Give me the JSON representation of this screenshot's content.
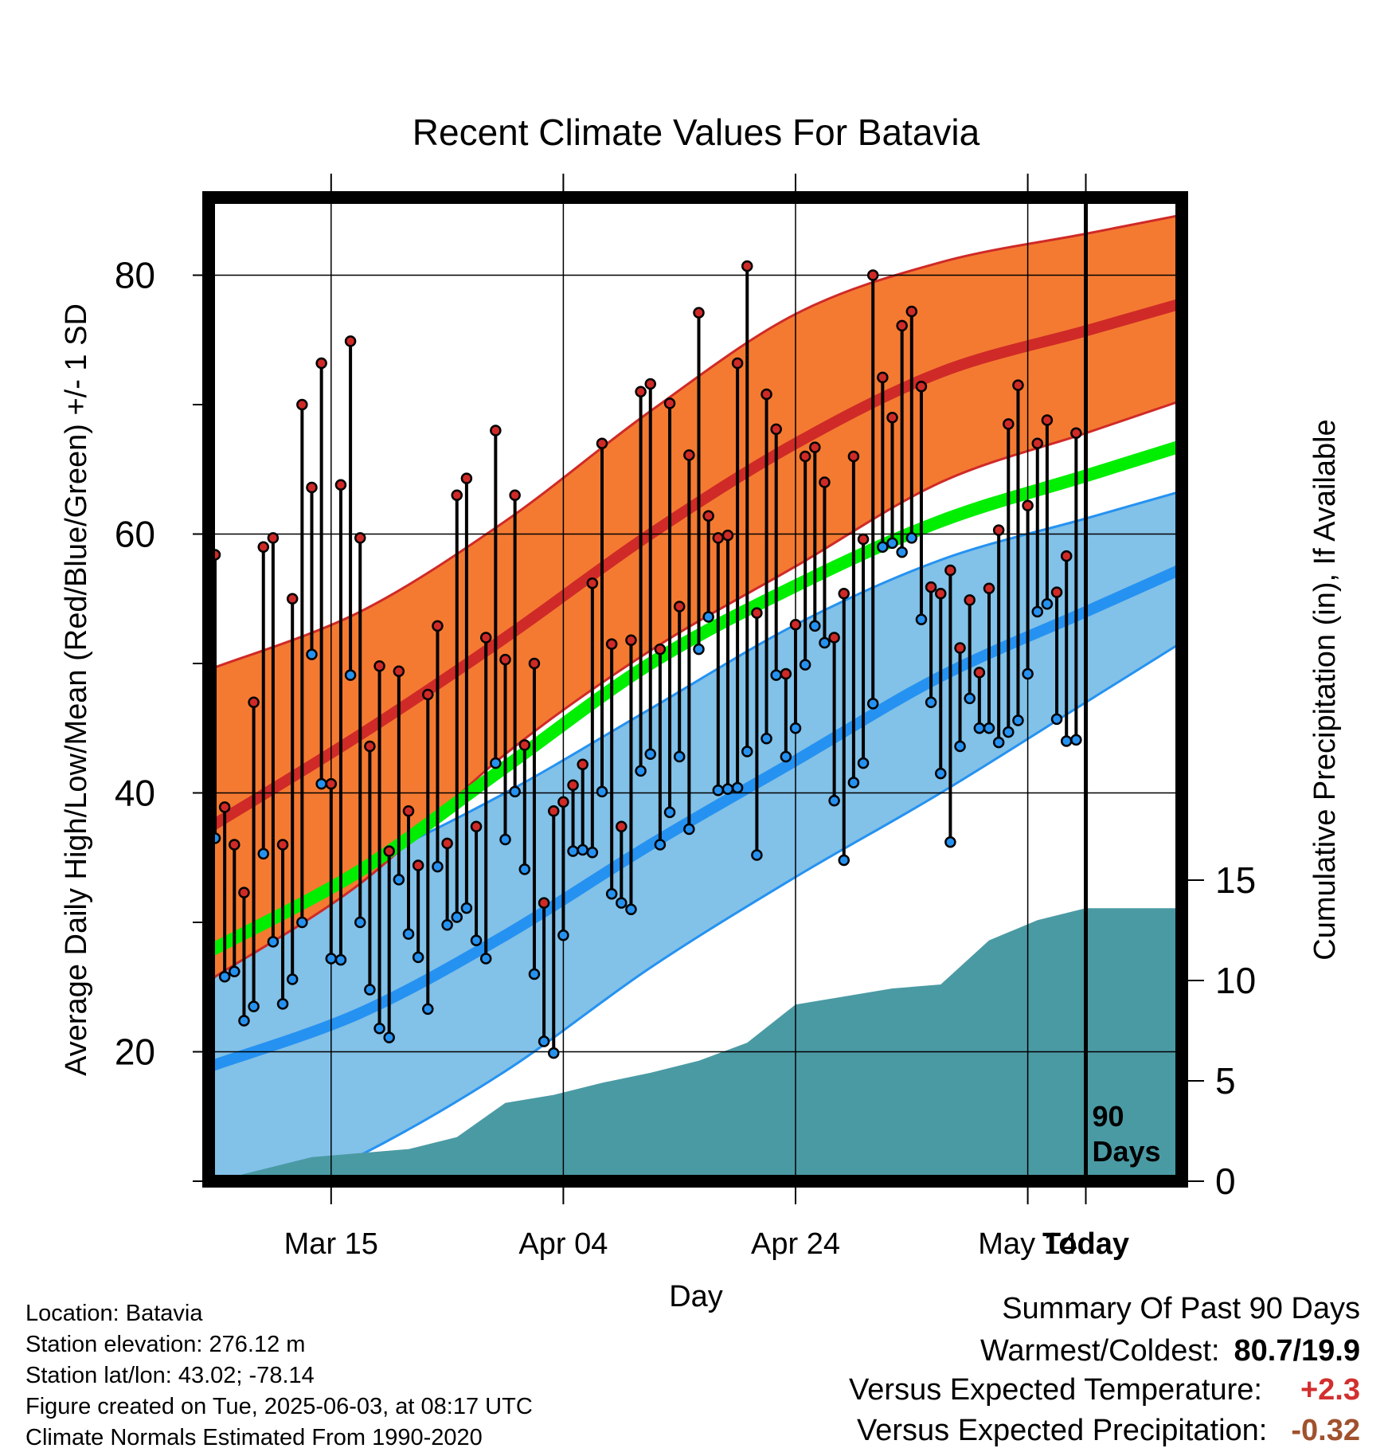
{
  "chart_data": {
    "type": "line",
    "title": "Recent Climate Values For Batavia",
    "xlabel": "Day",
    "ylabel": "Average Daily High/Low/Mean (Red/Blue/Green) +/- 1 SD",
    "ylabel_right": "Cumulative Precipitation (in), If Available",
    "x_tick_labels": [
      "Mar 15",
      "Apr 04",
      "Apr 24",
      "May 14",
      "Today"
    ],
    "y_ticks_left": [
      20,
      40,
      60,
      80
    ],
    "y_ticks_right": [
      0,
      5,
      10,
      15
    ],
    "ylim": [
      10,
      86
    ],
    "ylim_right": [
      0,
      49
    ],
    "today_marker": "90\nDays",
    "normals": {
      "high_mean": [
        37.6,
        44.5,
        52.0,
        60.0,
        67.0,
        72.5,
        75.7
      ],
      "high_upper": [
        49.7,
        54.0,
        61.0,
        69.5,
        77.0,
        81.0,
        83.2
      ],
      "high_lower": [
        25.8,
        33.0,
        43.0,
        51.0,
        57.5,
        64.0,
        67.8
      ],
      "low_mean": [
        19.0,
        23.0,
        29.0,
        36.0,
        42.5,
        49.0,
        54.0
      ],
      "low_upper": [
        30.5,
        34.5,
        40.0,
        46.5,
        53.0,
        58.0,
        61.2
      ],
      "low_lower": [
        7.0,
        12.0,
        18.5,
        26.5,
        33.5,
        40.0,
        47.0
      ],
      "mean_mean": [
        28.0,
        34.0,
        42.0,
        50.0,
        56.0,
        61.0,
        64.5
      ],
      "day_index": [
        0,
        15,
        30,
        45,
        60,
        75,
        90
      ]
    },
    "series": [
      {
        "name": "High",
        "values": [
          58.4,
          38.9,
          36.0,
          32.3,
          47.0,
          59.0,
          59.7,
          36.0,
          55.0,
          70.0,
          63.6,
          73.2,
          40.7,
          63.8,
          74.9,
          59.7,
          43.6,
          49.8,
          35.5,
          49.4,
          38.6,
          34.4,
          47.6,
          52.9,
          36.1,
          63.0,
          64.3,
          37.4,
          52.0,
          68.0,
          50.3,
          63.0,
          43.7,
          50.0,
          31.5,
          38.6,
          39.3,
          40.6,
          42.2,
          56.2,
          67.0,
          51.5,
          37.4,
          51.8,
          71.0,
          71.6,
          51.1,
          70.1,
          54.4,
          66.1,
          77.1,
          61.4,
          59.7,
          59.9,
          73.2,
          80.7,
          53.9,
          70.8,
          68.1,
          49.2,
          53.0,
          66.0,
          66.7,
          64.0,
          52.0,
          55.4,
          66.0,
          59.6,
          80.0,
          72.1,
          69.0,
          76.1,
          77.2,
          71.4,
          55.9,
          55.4,
          57.2,
          51.2,
          54.9,
          49.3,
          55.8,
          60.3,
          68.5,
          71.5,
          62.2,
          67.0,
          68.8,
          55.5,
          58.3,
          67.8
        ]
      },
      {
        "name": "Low",
        "values": [
          36.5,
          25.8,
          26.2,
          22.4,
          23.5,
          35.3,
          28.5,
          23.7,
          25.6,
          30.0,
          50.7,
          40.7,
          27.2,
          27.1,
          49.1,
          30.0,
          24.8,
          21.8,
          21.1,
          33.3,
          29.1,
          27.3,
          23.3,
          34.3,
          29.8,
          30.4,
          31.1,
          28.6,
          27.2,
          42.3,
          36.4,
          40.1,
          34.1,
          26.0,
          20.8,
          19.9,
          29.0,
          35.5,
          35.6,
          35.4,
          40.1,
          32.2,
          31.5,
          31.0,
          41.7,
          43.0,
          36.0,
          38.5,
          42.8,
          37.2,
          51.1,
          53.6,
          40.2,
          40.3,
          40.4,
          43.2,
          35.2,
          44.2,
          49.1,
          42.8,
          45.0,
          49.9,
          52.9,
          51.6,
          39.4,
          34.8,
          40.8,
          42.3,
          46.9,
          59.0,
          59.3,
          58.6,
          59.7,
          53.4,
          47.0,
          41.5,
          36.2,
          43.6,
          47.3,
          45.0,
          45.0,
          43.9,
          44.7,
          45.6,
          49.2,
          54.0,
          54.6,
          45.7,
          44.0,
          44.1
        ]
      },
      {
        "name": "Cumulative Precipitation",
        "x_index": [
          0,
          10,
          20,
          25,
          30,
          35,
          40,
          45,
          50,
          55,
          60,
          65,
          70,
          75,
          80,
          85,
          90
        ],
        "values": [
          0,
          1.2,
          1.6,
          2.2,
          3.9,
          4.3,
          4.9,
          5.4,
          6.0,
          6.9,
          8.8,
          9.2,
          9.6,
          9.8,
          12.0,
          13.0,
          13.6
        ]
      }
    ],
    "grid": true,
    "legend": "none"
  },
  "info": {
    "location": "Location: Batavia",
    "elevation": "Station elevation: 276.12 m",
    "latlon": "Station lat/lon: 43.02; -78.14",
    "created": "Figure created on Tue, 2025-06-03, at 08:17 UTC",
    "normals": "Climate Normals Estimated From 1990-2020"
  },
  "summary": {
    "title": "Summary Of Past 90 Days",
    "warm_cold_label": "Warmest/Coldest:",
    "warm_cold_value": "80.7/19.9",
    "temp_label": "Versus Expected Temperature:",
    "temp_value": "+2.3",
    "precip_label": "Versus Expected Precipitation:",
    "precip_value": "-0.32"
  },
  "colors": {
    "high_band": "#f47a32",
    "high_line": "#cf2a27",
    "low_band": "#82c1e8",
    "low_line": "#2592f1",
    "mean_line": "#00ee00",
    "precip_fill": "#4a9aa4",
    "temp_value": "#d32f2f",
    "precip_value": "#a0522d"
  }
}
